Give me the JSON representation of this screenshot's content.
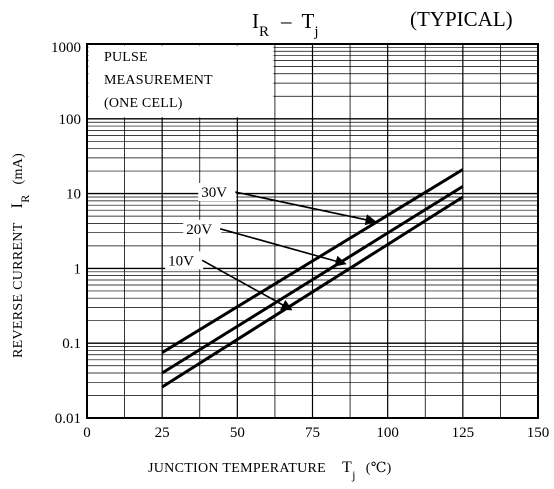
{
  "chart_data": {
    "type": "line",
    "title": {
      "main": "I",
      "main_sub": "R",
      "dash": "–",
      "var": "T",
      "var_sub": "j",
      "note": "(TYPICAL)"
    },
    "xlabel": {
      "text": "JUNCTION TEMPERATURE",
      "var": "T",
      "var_sub": "j",
      "unit": "(℃)"
    },
    "ylabel": {
      "text": "REVERSE CURRENT",
      "var": "I",
      "var_sub": "R",
      "unit": "(mA)"
    },
    "annotation_box": {
      "lines": [
        "PULSE",
        "MEASUREMENT",
        "(ONE CELL)"
      ]
    },
    "x_axis": {
      "scale": "linear",
      "range": [
        0,
        150
      ],
      "ticks": [
        0,
        25,
        50,
        75,
        100,
        125,
        150
      ],
      "tick_labels": [
        "0",
        "25",
        "50",
        "75",
        "100",
        "125",
        "150"
      ],
      "minor_step": 12.5
    },
    "y_axis": {
      "scale": "log",
      "range": [
        0.01,
        1000
      ],
      "ticks": [
        0.01,
        0.1,
        1,
        10,
        100,
        1000
      ],
      "tick_labels": [
        "0.01",
        "0.1",
        "1",
        "10",
        "100",
        "1000"
      ]
    },
    "grid": true,
    "series": [
      {
        "name": "30V",
        "x": [
          25,
          125
        ],
        "y": [
          0.075,
          21
        ]
      },
      {
        "name": "20V",
        "x": [
          25,
          125
        ],
        "y": [
          0.04,
          12.5
        ]
      },
      {
        "name": "10V",
        "x": [
          25,
          125
        ],
        "y": [
          0.026,
          9
        ]
      }
    ],
    "curve_labels": [
      {
        "series": "30V",
        "label_at": [
          38,
          9
        ],
        "arrow_to": [
          96,
          4.2
        ]
      },
      {
        "series": "20V",
        "label_at": [
          33,
          2.9
        ],
        "arrow_to": [
          86,
          1.15
        ]
      },
      {
        "series": "10V",
        "label_at": [
          27,
          1.1
        ],
        "arrow_to": [
          68,
          0.28
        ]
      }
    ]
  }
}
